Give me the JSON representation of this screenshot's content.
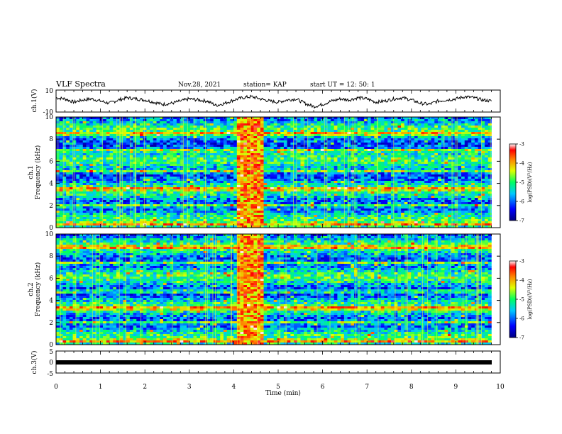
{
  "header": {
    "title": "VLF Spectra",
    "date": "Nov.28, 2021",
    "station": "station= KAP",
    "start": "start  UT =   12: 50: 1"
  },
  "colorbar": {
    "label": "log(PSD)(V²/Hz)",
    "ticks": [
      "-3",
      "-4",
      "-5",
      "-6",
      "-7"
    ]
  },
  "chart_data": [
    {
      "type": "line",
      "title": "",
      "ylabel": "ch.1(V)",
      "ylim": [
        -10,
        10
      ],
      "yticks": [
        "10",
        "-10"
      ],
      "xlim": [
        0,
        10
      ],
      "description_values": "noisy waveform around 0 V, amplitude roughly ±4 V over 0–9.8 min",
      "series": [
        {
          "values": [
            3,
            2,
            -1,
            1,
            2,
            0,
            -2,
            1,
            3,
            2,
            1,
            -1,
            -3,
            -2,
            0,
            2,
            1,
            0,
            -4,
            -2,
            1,
            3,
            4,
            2,
            0,
            -1,
            1,
            2,
            -2,
            -5,
            -3,
            0,
            2,
            1,
            3,
            2,
            -1,
            0,
            2,
            3,
            1,
            -2,
            -3,
            0,
            1,
            2,
            4,
            3,
            1,
            0
          ]
        }
      ]
    },
    {
      "type": "heatmap",
      "ylabel": "ch.1\nFrequency (kHz)",
      "ylim": [
        0,
        10
      ],
      "yticks": [
        "0",
        "2",
        "4",
        "6",
        "8",
        "10"
      ],
      "xlim": [
        0,
        10
      ],
      "zlim": [
        -7,
        -3
      ],
      "bands_khz": [
        0.3,
        2.0,
        3.5,
        5.1,
        7.0,
        8.5
      ],
      "burst_minutes": [
        4.05,
        4.7
      ]
    },
    {
      "type": "heatmap",
      "ylabel": "ch.2\nFrequency (kHz)",
      "ylim": [
        0,
        10
      ],
      "yticks": [
        "0",
        "2",
        "4",
        "6",
        "8",
        "10"
      ],
      "xlim": [
        0,
        10
      ],
      "zlim": [
        -7,
        -3
      ],
      "bands_khz": [
        0.3,
        2.0,
        3.3,
        4.8,
        7.4,
        8.8
      ],
      "burst_minutes": [
        4.05,
        4.7
      ]
    },
    {
      "type": "line",
      "ylabel": "ch.3(V)",
      "ylim": [
        -5,
        5
      ],
      "yticks": [
        "5",
        "0",
        "-5"
      ],
      "xlim": [
        0,
        10
      ],
      "series": [
        {
          "values": [
            0,
            0,
            0,
            0,
            0,
            0,
            0,
            0,
            0,
            0,
            0
          ]
        }
      ]
    }
  ],
  "xaxis": {
    "label": "Time (min)",
    "ticks": [
      "0",
      "1",
      "2",
      "3",
      "4",
      "5",
      "6",
      "7",
      "8",
      "9",
      "10"
    ]
  }
}
